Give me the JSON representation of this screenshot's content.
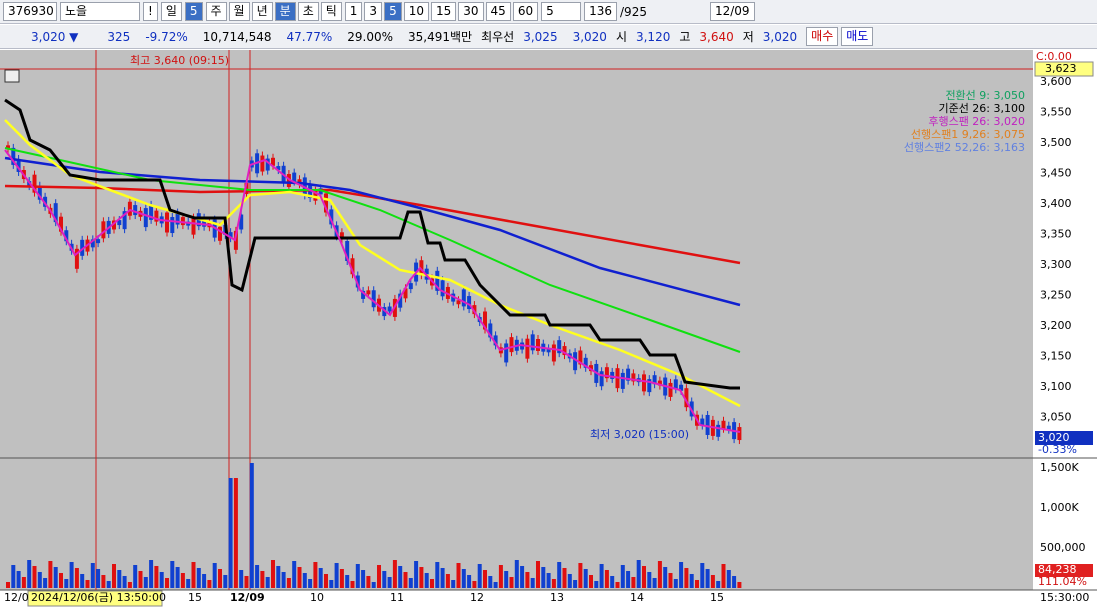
{
  "toolbar": {
    "code": "376930",
    "name": "노을",
    "alert": "!",
    "day": "일",
    "day_n": "5",
    "periods": [
      "주",
      "월",
      "년",
      "분",
      "초",
      "틱"
    ],
    "minutes": [
      "1",
      "3",
      "5",
      "10",
      "15",
      "30",
      "45",
      "60"
    ],
    "count_unit": "5",
    "count": "136",
    "total": "/925",
    "date": "12/09"
  },
  "info": {
    "price": "3,020 ▼",
    "change": "325",
    "rate": "-9.72%",
    "volume": "10,714,548",
    "turnover": "47.77%",
    "ratio": "29.00%",
    "amount": "35,491백만",
    "best_label": "최우선",
    "best_ask": "3,025",
    "best_bid": "3,020",
    "open_label": "시",
    "open": "3,120",
    "high_label": "고",
    "high": "3,640",
    "low_label": "저",
    "low": "3,020",
    "buy": "매수",
    "sell": "매도"
  },
  "chart": {
    "high_note": "최고 3,640 (09:15)",
    "low_note": "최저 3,020 (15:00)",
    "legend": [
      "전환선 9: 3,050",
      "기준선 26: 3,100",
      "후행스팬 26: 3,020",
      "선행스팬1 9,26: 3,075",
      "선행스팬2 52,26: 3,163"
    ],
    "corner": "C:0.00",
    "price_ticks": [
      "3,600",
      "3,550",
      "3,500",
      "3,450",
      "3,400",
      "3,350",
      "3,300",
      "3,250",
      "3,200",
      "3,150",
      "3,100",
      "3,050"
    ],
    "top_marker": "3,623",
    "current": "3,020",
    "current_rate": "-0.33%",
    "volume_ticks": [
      "1,500K",
      "1,000K",
      "500,000"
    ],
    "volume_current": "84,238",
    "volume_rate": "111.04%",
    "x_labels": [
      "12/0",
      "15",
      "12/09",
      "10",
      "11",
      "12",
      "13",
      "14",
      "15"
    ],
    "time": "15:30:00",
    "tooltip": "2024/12/06(금) 13:50:00"
  }
}
